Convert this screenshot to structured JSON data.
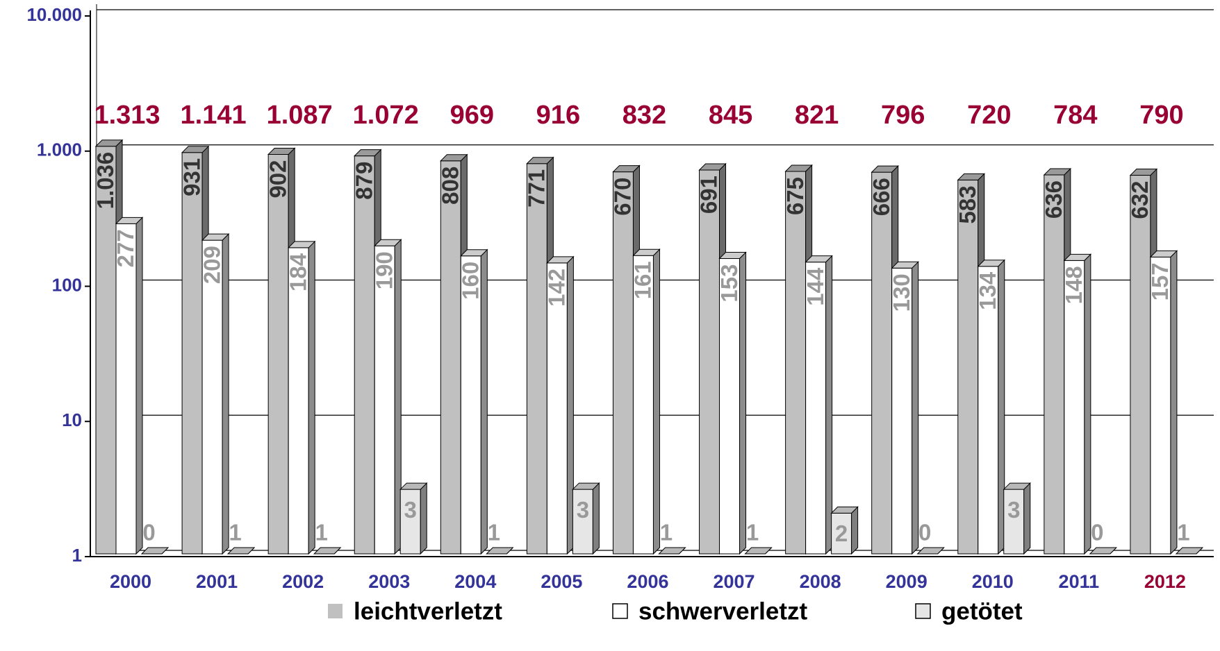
{
  "chart_data": {
    "type": "bar3d",
    "log_scale": true,
    "categories": [
      "2000",
      "2001",
      "2002",
      "2003",
      "2004",
      "2005",
      "2006",
      "2007",
      "2008",
      "2009",
      "2010",
      "2011",
      "2012"
    ],
    "category_label_colors": [
      "#333399",
      "#333399",
      "#333399",
      "#333399",
      "#333399",
      "#333399",
      "#333399",
      "#333399",
      "#333399",
      "#333399",
      "#333399",
      "#333399",
      "#990033"
    ],
    "series": [
      {
        "name": "leichtverletzt",
        "color": "#c0c0c0",
        "label_color": "#333333",
        "values": [
          1036,
          931,
          902,
          879,
          808,
          771,
          670,
          691,
          675,
          666,
          583,
          636,
          632
        ],
        "value_labels": [
          "1.036",
          "931",
          "902",
          "879",
          "808",
          "771",
          "670",
          "691",
          "675",
          "666",
          "583",
          "636",
          "632"
        ]
      },
      {
        "name": "schwerverletzt",
        "color": "#ffffff",
        "label_color": "#999999",
        "values": [
          277,
          209,
          184,
          190,
          160,
          142,
          161,
          153,
          144,
          130,
          134,
          148,
          157
        ]
      },
      {
        "name": "getötet",
        "color": "#e6e6e6",
        "label_color": "#999999",
        "values": [
          0,
          1,
          1,
          3,
          1,
          3,
          1,
          1,
          2,
          0,
          3,
          0,
          1
        ]
      }
    ],
    "totals": {
      "color": "#990033",
      "values": [
        1313,
        1141,
        1087,
        1072,
        969,
        916,
        832,
        845,
        821,
        796,
        720,
        784,
        790
      ],
      "value_labels": [
        "1.313",
        "1.141",
        "1.087",
        "1.072",
        "969",
        "916",
        "832",
        "845",
        "821",
        "796",
        "720",
        "784",
        "790"
      ]
    },
    "ylim": [
      1,
      10000
    ],
    "yticks": [
      1,
      10,
      100,
      {
        "value": 1000,
        "label": "1.000"
      },
      {
        "value": 10000,
        "label": "10.000"
      }
    ],
    "grid": true
  }
}
